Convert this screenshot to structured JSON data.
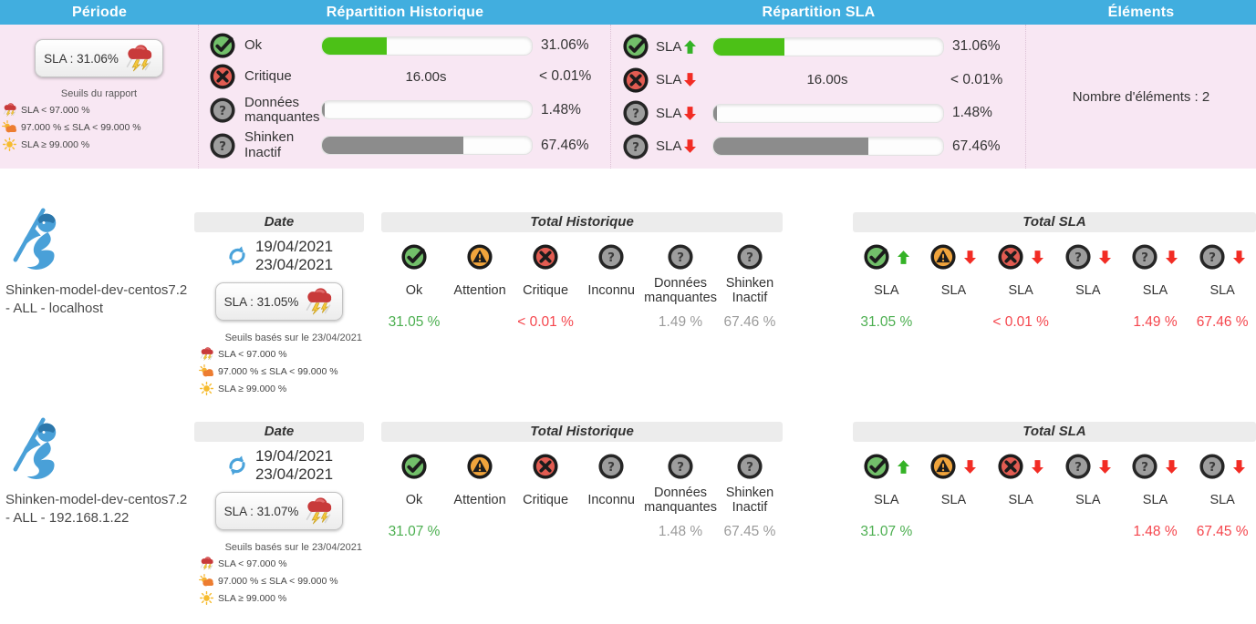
{
  "header": {
    "period": "Période",
    "historique": "Répartition Historique",
    "sla": "Répartition SLA",
    "elements": "Éléments"
  },
  "icons": {
    "ok": "check-circle-icon",
    "warning": "warning-triangle-circle-icon",
    "critical": "cross-circle-icon",
    "unknown": "question-circle-icon",
    "up": "green-up-arrow-icon",
    "down": "red-down-arrow-icon",
    "storm": "storm-cloud-icon",
    "sun-cloud": "sun-behind-cloud-icon",
    "sun": "sun-icon",
    "refresh": "date-range-refresh-icon",
    "logo": "shinken-ninja-logo"
  },
  "colors": {
    "header_blue": "#41aedf",
    "summary_pink": "#f8e7f3",
    "bar_green": "#4cc117",
    "bar_gray": "#8c8c8c",
    "value_green": "#4caf50",
    "value_red": "#f5464d",
    "value_gray": "#9b9b9b"
  },
  "summary": {
    "period": {
      "sla_badge": "SLA : 31.06%",
      "thresholds_title": "Seuils du rapport",
      "thresholds": [
        {
          "icon": "storm",
          "label": "SLA < 97.000 %"
        },
        {
          "icon": "sun-cloud",
          "label": "97.000 % ≤ SLA < 99.000 %"
        },
        {
          "icon": "sun",
          "label": "SLA ≥ 99.000 %"
        }
      ]
    },
    "historique": {
      "rows": [
        {
          "icon": "ok",
          "label": "Ok",
          "bar_percent": 31.06,
          "bar_color": "#4cc117",
          "value": "31.06%"
        },
        {
          "icon": "critical",
          "label": "Critique",
          "duration": "16.00s",
          "value": "< 0.01%"
        },
        {
          "icon": "unknown",
          "label": "Données manquantes",
          "bar_percent": 1.48,
          "bar_color": "#8c8c8c",
          "value": "1.48%"
        },
        {
          "icon": "unknown",
          "label": "Shinken Inactif",
          "bar_percent": 67.46,
          "bar_color": "#8c8c8c",
          "value": "67.46%"
        }
      ]
    },
    "sla": {
      "rows": [
        {
          "icon": "ok",
          "label": "SLA",
          "trend": "up",
          "bar_percent": 31.06,
          "bar_color": "#4cc117",
          "value": "31.06%"
        },
        {
          "icon": "critical",
          "label": "SLA",
          "trend": "down",
          "duration": "16.00s",
          "value": "< 0.01%"
        },
        {
          "icon": "unknown",
          "label": "SLA",
          "trend": "down",
          "bar_percent": 1.48,
          "bar_color": "#8c8c8c",
          "value": "1.48%"
        },
        {
          "icon": "unknown",
          "label": "SLA",
          "trend": "down",
          "bar_percent": 67.46,
          "bar_color": "#8c8c8c",
          "value": "67.46%"
        }
      ]
    },
    "elements": {
      "count_label": "Nombre d'éléments : 2"
    }
  },
  "hosts": [
    {
      "name": "Shinken-model-dev-centos7.2 - ALL - localhost",
      "date": {
        "title": "Date",
        "date_from": "19/04/2021",
        "date_to": "23/04/2021",
        "sla_badge": "SLA : 31.05%",
        "seuils_caption": "Seuils basés sur le 23/04/2021",
        "thresholds": [
          {
            "icon": "storm",
            "label": "SLA < 97.000 %"
          },
          {
            "icon": "sun-cloud",
            "label": "97.000 % ≤ SLA < 99.000 %"
          },
          {
            "icon": "sun",
            "label": "SLA ≥ 99.000 %"
          }
        ]
      },
      "historique": {
        "title": "Total Historique",
        "columns": [
          {
            "icon": "ok",
            "label": "Ok",
            "value": "31.05 %",
            "value_color": "green"
          },
          {
            "icon": "warning",
            "label": "Attention",
            "value": "",
            "value_color": ""
          },
          {
            "icon": "critical",
            "label": "Critique",
            "value": "< 0.01 %",
            "value_color": "red"
          },
          {
            "icon": "unknown",
            "label": "Inconnu",
            "value": "",
            "value_color": ""
          },
          {
            "icon": "unknown",
            "label": "Données manquantes",
            "value": "1.49 %",
            "value_color": "gray"
          },
          {
            "icon": "unknown",
            "label": "Shinken Inactif",
            "value": "67.46 %",
            "value_color": "gray"
          }
        ]
      },
      "sla": {
        "title": "Total SLA",
        "columns": [
          {
            "icon": "ok",
            "trend": "up",
            "label": "SLA",
            "value": "31.05 %",
            "value_color": "green"
          },
          {
            "icon": "warning",
            "trend": "down",
            "label": "SLA",
            "value": "",
            "value_color": ""
          },
          {
            "icon": "critical",
            "trend": "down",
            "label": "SLA",
            "value": "< 0.01 %",
            "value_color": "red"
          },
          {
            "icon": "unknown",
            "trend": "down",
            "label": "SLA",
            "value": "",
            "value_color": ""
          },
          {
            "icon": "unknown",
            "trend": "down",
            "label": "SLA",
            "value": "1.49 %",
            "value_color": "red"
          },
          {
            "icon": "unknown",
            "trend": "down",
            "label": "SLA",
            "value": "67.46 %",
            "value_color": "red"
          }
        ]
      }
    },
    {
      "name": "Shinken-model-dev-centos7.2 - ALL - 192.168.1.22",
      "date": {
        "title": "Date",
        "date_from": "19/04/2021",
        "date_to": "23/04/2021",
        "sla_badge": "SLA : 31.07%",
        "seuils_caption": "Seuils basés sur le 23/04/2021",
        "thresholds": [
          {
            "icon": "storm",
            "label": "SLA < 97.000 %"
          },
          {
            "icon": "sun-cloud",
            "label": "97.000 % ≤ SLA < 99.000 %"
          },
          {
            "icon": "sun",
            "label": "SLA ≥ 99.000 %"
          }
        ]
      },
      "historique": {
        "title": "Total Historique",
        "columns": [
          {
            "icon": "ok",
            "label": "Ok",
            "value": "31.07 %",
            "value_color": "green"
          },
          {
            "icon": "warning",
            "label": "Attention",
            "value": "",
            "value_color": ""
          },
          {
            "icon": "critical",
            "label": "Critique",
            "value": "",
            "value_color": ""
          },
          {
            "icon": "unknown",
            "label": "Inconnu",
            "value": "",
            "value_color": ""
          },
          {
            "icon": "unknown",
            "label": "Données manquantes",
            "value": "1.48 %",
            "value_color": "gray"
          },
          {
            "icon": "unknown",
            "label": "Shinken Inactif",
            "value": "67.45 %",
            "value_color": "gray"
          }
        ]
      },
      "sla": {
        "title": "Total SLA",
        "columns": [
          {
            "icon": "ok",
            "trend": "up",
            "label": "SLA",
            "value": "31.07 %",
            "value_color": "green"
          },
          {
            "icon": "warning",
            "trend": "down",
            "label": "SLA",
            "value": "",
            "value_color": ""
          },
          {
            "icon": "critical",
            "trend": "down",
            "label": "SLA",
            "value": "",
            "value_color": ""
          },
          {
            "icon": "unknown",
            "trend": "down",
            "label": "SLA",
            "value": "",
            "value_color": ""
          },
          {
            "icon": "unknown",
            "trend": "down",
            "label": "SLA",
            "value": "1.48 %",
            "value_color": "red"
          },
          {
            "icon": "unknown",
            "trend": "down",
            "label": "SLA",
            "value": "67.45 %",
            "value_color": "red"
          }
        ]
      }
    }
  ]
}
